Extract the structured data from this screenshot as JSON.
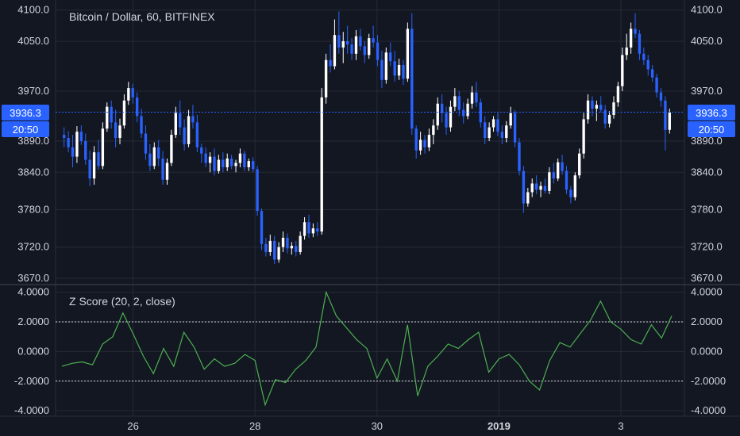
{
  "chart_data": [
    {
      "type": "candlestick",
      "title": "Bitcoin / Dollar, 60, BITFINEX",
      "y_ticks": [
        "4100.0",
        "4050.0",
        "3970.0",
        "3890.0",
        "3840.0",
        "3780.0",
        "3720.0",
        "3670.0"
      ],
      "y_tick_values": [
        4100,
        4050,
        3970,
        3890,
        3840,
        3780,
        3720,
        3670
      ],
      "ylim": [
        3665,
        4106
      ],
      "x_ticks": [
        "26",
        "28",
        "30",
        "2019",
        "3"
      ],
      "x_tick_positions": [
        14,
        38,
        62,
        86,
        110
      ],
      "x_range": [
        0,
        120
      ],
      "last_price": "3936.3",
      "last_price_value": 3936.3,
      "countdown": "20:50",
      "candles": [
        [
          3900,
          3912,
          3880,
          3895
        ],
        [
          3895,
          3906,
          3872,
          3880
        ],
        [
          3880,
          3900,
          3848,
          3865
        ],
        [
          3865,
          3914,
          3855,
          3905
        ],
        [
          3905,
          3915,
          3884,
          3890
        ],
        [
          3890,
          3902,
          3852,
          3860
        ],
        [
          3860,
          3875,
          3818,
          3830
        ],
        [
          3830,
          3882,
          3820,
          3872
        ],
        [
          3872,
          3892,
          3844,
          3850
        ],
        [
          3850,
          3920,
          3845,
          3910
        ],
        [
          3910,
          3952,
          3905,
          3945
        ],
        [
          3945,
          3955,
          3910,
          3920
        ],
        [
          3920,
          3940,
          3880,
          3895
        ],
        [
          3895,
          3926,
          3885,
          3915
        ],
        [
          3915,
          3965,
          3910,
          3955
        ],
        [
          3955,
          3985,
          3948,
          3975
        ],
        [
          3975,
          3982,
          3950,
          3960
        ],
        [
          3960,
          3968,
          3920,
          3930
        ],
        [
          3930,
          3942,
          3895,
          3902
        ],
        [
          3902,
          3915,
          3860,
          3870
        ],
        [
          3870,
          3885,
          3842,
          3850
        ],
        [
          3850,
          3888,
          3845,
          3880
        ],
        [
          3880,
          3892,
          3850,
          3862
        ],
        [
          3862,
          3874,
          3820,
          3828
        ],
        [
          3828,
          3862,
          3820,
          3855
        ],
        [
          3855,
          3908,
          3850,
          3900
        ],
        [
          3900,
          3945,
          3895,
          3935
        ],
        [
          3935,
          3955,
          3900,
          3912
        ],
        [
          3912,
          3925,
          3875,
          3885
        ],
        [
          3885,
          3940,
          3880,
          3930
        ],
        [
          3930,
          3948,
          3910,
          3920
        ],
        [
          3920,
          3932,
          3872,
          3880
        ],
        [
          3880,
          3886,
          3855,
          3870
        ],
        [
          3870,
          3880,
          3848,
          3855
        ],
        [
          3855,
          3872,
          3840,
          3865
        ],
        [
          3865,
          3878,
          3835,
          3842
        ],
        [
          3842,
          3868,
          3838,
          3860
        ],
        [
          3860,
          3872,
          3840,
          3848
        ],
        [
          3848,
          3870,
          3842,
          3862
        ],
        [
          3862,
          3868,
          3845,
          3850
        ],
        [
          3850,
          3860,
          3840,
          3855
        ],
        [
          3855,
          3878,
          3848,
          3870
        ],
        [
          3870,
          3875,
          3842,
          3848
        ],
        [
          3848,
          3862,
          3842,
          3858
        ],
        [
          3858,
          3864,
          3840,
          3845
        ],
        [
          3845,
          3850,
          3770,
          3778
        ],
        [
          3778,
          3782,
          3715,
          3725
        ],
        [
          3725,
          3735,
          3705,
          3712
        ],
        [
          3712,
          3740,
          3706,
          3730
        ],
        [
          3730,
          3738,
          3693,
          3700
        ],
        [
          3700,
          3728,
          3695,
          3720
        ],
        [
          3720,
          3745,
          3712,
          3735
        ],
        [
          3735,
          3742,
          3710,
          3718
        ],
        [
          3718,
          3728,
          3708,
          3722
        ],
        [
          3722,
          3730,
          3705,
          3712
        ],
        [
          3712,
          3745,
          3708,
          3738
        ],
        [
          3738,
          3768,
          3732,
          3760
        ],
        [
          3760,
          3772,
          3735,
          3742
        ],
        [
          3742,
          3758,
          3736,
          3750
        ],
        [
          3750,
          3760,
          3738,
          3745
        ],
        [
          3745,
          3975,
          3740,
          3960
        ],
        [
          3960,
          4030,
          3950,
          4020
        ],
        [
          4020,
          4045,
          4000,
          4010
        ],
        [
          4010,
          4085,
          4005,
          4060
        ],
        [
          4060,
          4098,
          4030,
          4040
        ],
        [
          4040,
          4065,
          4015,
          4050
        ],
        [
          4050,
          4075,
          4030,
          4045
        ],
        [
          4045,
          4055,
          4020,
          4030
        ],
        [
          4030,
          4068,
          4020,
          4058
        ],
        [
          4058,
          4070,
          4035,
          4042
        ],
        [
          4042,
          4050,
          4015,
          4028
        ],
        [
          4028,
          4062,
          4022,
          4055
        ],
        [
          4055,
          4075,
          4040,
          4048
        ],
        [
          4048,
          4060,
          4010,
          4020
        ],
        [
          4020,
          4035,
          3975,
          3988
        ],
        [
          3988,
          4040,
          3982,
          4032
        ],
        [
          4032,
          4048,
          4010,
          4018
        ],
        [
          4018,
          4035,
          3985,
          3995
        ],
        [
          3995,
          4022,
          3988,
          4012
        ],
        [
          4012,
          4020,
          3980,
          3990
        ],
        [
          3990,
          4080,
          3985,
          4070
        ],
        [
          4070,
          4095,
          3900,
          3910
        ],
        [
          3910,
          3915,
          3862,
          3875
        ],
        [
          3875,
          3905,
          3868,
          3892
        ],
        [
          3892,
          3900,
          3870,
          3880
        ],
        [
          3880,
          3910,
          3874,
          3900
        ],
        [
          3900,
          3925,
          3885,
          3915
        ],
        [
          3915,
          3960,
          3908,
          3950
        ],
        [
          3950,
          3965,
          3920,
          3935
        ],
        [
          3935,
          3945,
          3900,
          3912
        ],
        [
          3912,
          3955,
          3905,
          3945
        ],
        [
          3945,
          3975,
          3938,
          3962
        ],
        [
          3962,
          3970,
          3930,
          3940
        ],
        [
          3940,
          3952,
          3918,
          3930
        ],
        [
          3930,
          3958,
          3925,
          3950
        ],
        [
          3950,
          3978,
          3942,
          3968
        ],
        [
          3968,
          3985,
          3945,
          3952
        ],
        [
          3952,
          3958,
          3912,
          3920
        ],
        [
          3920,
          3930,
          3885,
          3895
        ],
        [
          3895,
          3920,
          3890,
          3912
        ],
        [
          3912,
          3930,
          3905,
          3925
        ],
        [
          3925,
          3935,
          3898,
          3905
        ],
        [
          3905,
          3915,
          3885,
          3895
        ],
        [
          3895,
          3922,
          3888,
          3915
        ],
        [
          3915,
          3945,
          3910,
          3935
        ],
        [
          3935,
          3940,
          3880,
          3888
        ],
        [
          3888,
          3895,
          3835,
          3842
        ],
        [
          3842,
          3850,
          3775,
          3790
        ],
        [
          3790,
          3815,
          3785,
          3808
        ],
        [
          3808,
          3830,
          3800,
          3822
        ],
        [
          3822,
          3835,
          3805,
          3812
        ],
        [
          3812,
          3825,
          3800,
          3818
        ],
        [
          3818,
          3830,
          3806,
          3810
        ],
        [
          3810,
          3848,
          3805,
          3840
        ],
        [
          3840,
          3855,
          3822,
          3830
        ],
        [
          3830,
          3862,
          3826,
          3856
        ],
        [
          3856,
          3868,
          3836,
          3842
        ],
        [
          3842,
          3850,
          3805,
          3812
        ],
        [
          3812,
          3818,
          3790,
          3800
        ],
        [
          3800,
          3840,
          3795,
          3835
        ],
        [
          3835,
          3878,
          3830,
          3870
        ],
        [
          3870,
          3935,
          3862,
          3925
        ],
        [
          3925,
          3965,
          3918,
          3955
        ],
        [
          3955,
          3962,
          3930,
          3942
        ],
        [
          3942,
          3955,
          3922,
          3948
        ],
        [
          3948,
          3962,
          3936,
          3940
        ],
        [
          3940,
          3948,
          3910,
          3918
        ],
        [
          3918,
          3938,
          3912,
          3932
        ],
        [
          3932,
          3962,
          3926,
          3952
        ],
        [
          3952,
          3985,
          3945,
          3978
        ],
        [
          3978,
          4040,
          3970,
          4028
        ],
        [
          4028,
          4062,
          4020,
          4040
        ],
        [
          4040,
          4080,
          4030,
          4070
        ],
        [
          4070,
          4095,
          4055,
          4062
        ],
        [
          4062,
          4068,
          4020,
          4030
        ],
        [
          4030,
          4040,
          4012,
          4020
        ],
        [
          4020,
          4028,
          3995,
          4005
        ],
        [
          4005,
          4012,
          3985,
          3992
        ],
        [
          3992,
          3998,
          3960,
          3968
        ],
        [
          3968,
          3975,
          3945,
          3955
        ],
        [
          3955,
          3962,
          3875,
          3908
        ],
        [
          3908,
          3942,
          3902,
          3936
        ]
      ]
    },
    {
      "type": "line",
      "title": "Z Score (20, 2, close)",
      "y_ticks": [
        "4.0000",
        "2.0000",
        "0.0000",
        "-2.0000",
        "-4.0000"
      ],
      "y_tick_values": [
        4,
        2,
        0,
        -2,
        -4
      ],
      "ylim": [
        -4.1,
        4.3
      ],
      "reference_lines": [
        2,
        -2
      ],
      "color": "#4caf50",
      "x": [
        0,
        2,
        4,
        6,
        8,
        10,
        12,
        14,
        16,
        18,
        20,
        22,
        24,
        26,
        28,
        30,
        32,
        34,
        36,
        38,
        40,
        42,
        44,
        46,
        48,
        50,
        52,
        54,
        56,
        58,
        60,
        62,
        64,
        66,
        68,
        70,
        72,
        74,
        76,
        78,
        80,
        82,
        84,
        86,
        88,
        90,
        92,
        94,
        96,
        98,
        100,
        102,
        104,
        106,
        108,
        110,
        112,
        114,
        116,
        118,
        120
      ],
      "values": [
        -1.0,
        -0.8,
        -0.7,
        -0.9,
        0.5,
        1.0,
        2.6,
        1.2,
        -0.3,
        -1.5,
        0.2,
        -1.0,
        1.3,
        0.3,
        -1.2,
        -0.5,
        -1.0,
        -0.8,
        -0.2,
        -0.6,
        -3.6,
        -1.9,
        -2.1,
        -1.2,
        -0.6,
        0.3,
        4.0,
        2.4,
        1.6,
        0.8,
        0.2,
        -1.8,
        -0.5,
        -2.0,
        1.8,
        -3.0,
        -1.0,
        -0.3,
        0.5,
        0.2,
        0.8,
        1.3,
        -1.4,
        -0.5,
        -0.2,
        -0.9,
        -2.0,
        -2.6,
        -0.6,
        0.6,
        0.3,
        1.2,
        2.1,
        3.4,
        2.0,
        1.5,
        0.8,
        0.5,
        1.8,
        0.9,
        2.4
      ]
    }
  ]
}
